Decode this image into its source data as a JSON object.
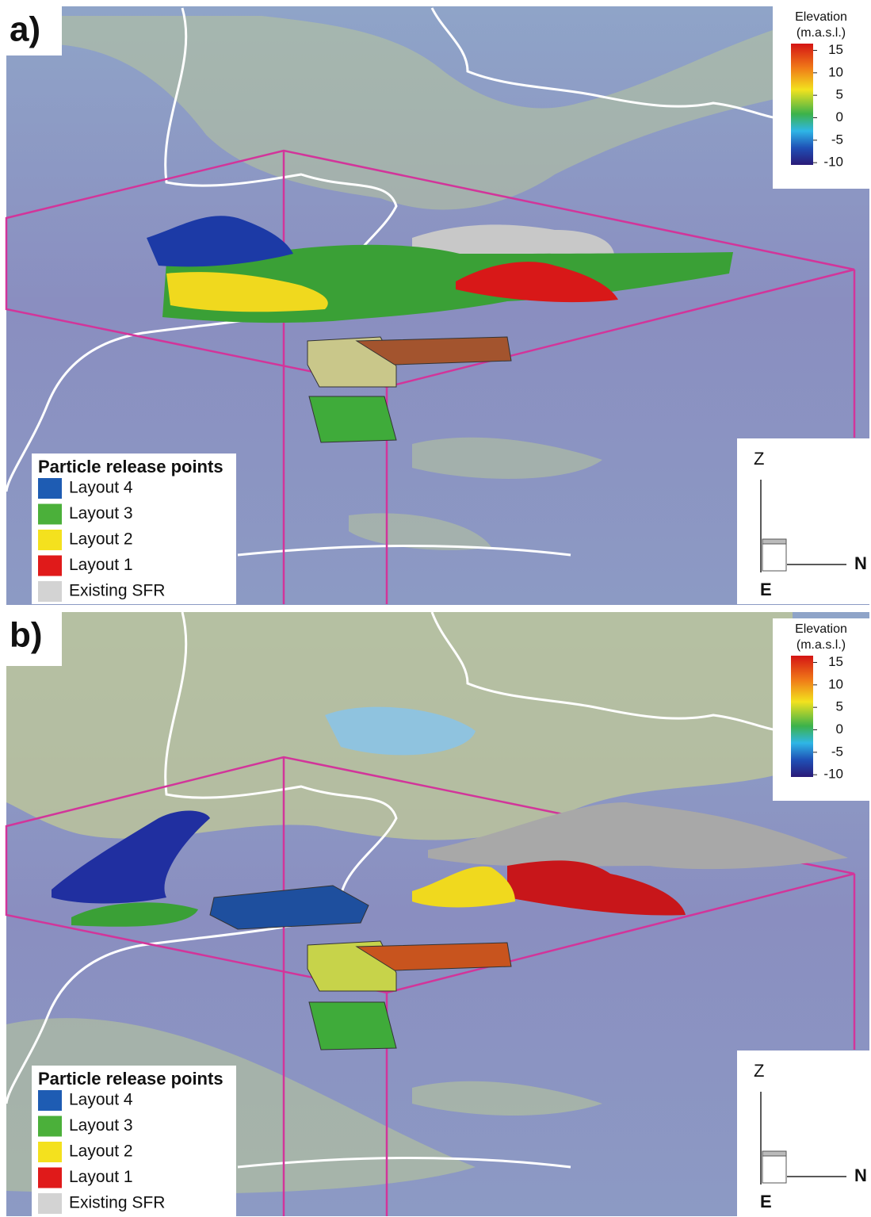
{
  "panels": [
    {
      "label": "a)",
      "colorbar": {
        "title": [
          "Elevation",
          "(m.a.s.l.)"
        ],
        "lim": [
          -10.5,
          16.5
        ],
        "ticks": [
          15,
          10,
          5,
          0,
          -5,
          -10
        ]
      },
      "legend": {
        "title": "Particle release points",
        "items": [
          {
            "name": "Layout 4",
            "color": "#1e5cb3"
          },
          {
            "name": "Layout 3",
            "color": "#4bb03a"
          },
          {
            "name": "Layout 2",
            "color": "#f4e11e"
          },
          {
            "name": "Layout 1",
            "color": "#e01a1a"
          },
          {
            "name": "Existing SFR",
            "color": "#d3d3d3"
          }
        ]
      },
      "axes": {
        "z": "Z",
        "n": "N",
        "e": "E"
      }
    },
    {
      "label": "b)",
      "colorbar": {
        "title": [
          "Elevation",
          "(m.a.s.l.)"
        ],
        "lim": [
          -10.5,
          16.5
        ],
        "ticks": [
          15,
          10,
          5,
          0,
          -5,
          -10
        ]
      },
      "legend": {
        "title": "Particle release points",
        "items": [
          {
            "name": "Layout 4",
            "color": "#1e5cb3"
          },
          {
            "name": "Layout 3",
            "color": "#4bb03a"
          },
          {
            "name": "Layout 2",
            "color": "#f4e11e"
          },
          {
            "name": "Layout 1",
            "color": "#e01a1a"
          },
          {
            "name": "Existing SFR",
            "color": "#d3d3d3"
          }
        ]
      },
      "axes": {
        "z": "Z",
        "n": "N",
        "e": "E"
      }
    }
  ]
}
